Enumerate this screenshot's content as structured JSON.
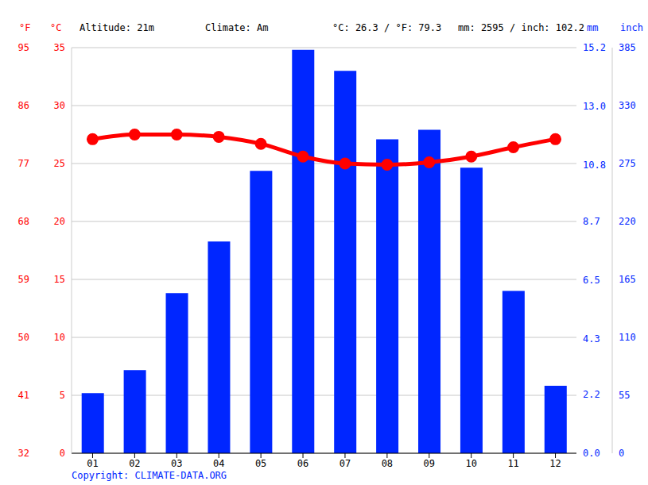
{
  "chart_data": {
    "type": "bar",
    "header": [
      "Altitude: 21m",
      "Climate: Am",
      "°C: 26.3 / °F: 79.3",
      "mm: 2595 / inch: 102.2"
    ],
    "footer": "Copyright: CLIMATE-DATA.ORG",
    "categories": [
      "01",
      "02",
      "03",
      "04",
      "05",
      "06",
      "07",
      "08",
      "09",
      "10",
      "11",
      "12"
    ],
    "series": [
      {
        "name": "mm",
        "type": "bar",
        "axis": "y2",
        "color": "#0026ff",
        "values": [
          57,
          79,
          152,
          201,
          268,
          383,
          363,
          298,
          307,
          271,
          154,
          64
        ]
      },
      {
        "name": "°C",
        "type": "line",
        "color": "#ff0000",
        "marker": "circle",
        "values": [
          27.1,
          27.5,
          27.5,
          27.3,
          26.7,
          25.6,
          25.0,
          24.9,
          25.1,
          25.6,
          26.4,
          27.1
        ]
      }
    ],
    "ylim": [
      0,
      35
    ],
    "yticks": [
      0,
      5,
      10,
      15,
      20,
      25,
      30,
      35
    ],
    "y2lim": [
      0,
      385
    ],
    "y2ticks": [
      0,
      55,
      110,
      165,
      220,
      275,
      330,
      385
    ],
    "y3label": "°F",
    "y3lim": [
      32,
      95
    ],
    "y3ticks": [
      32,
      41,
      50,
      59,
      68,
      77,
      86,
      95
    ],
    "y4label": "inch",
    "y4lim": [
      0,
      15.2
    ],
    "y4ticks": [
      {
        "value": 0,
        "label": "0.0"
      },
      2.2,
      4.3,
      6.5,
      8.7,
      10.8,
      {
        "value": 13,
        "label": "13.0"
      },
      15.2
    ],
    "grid": true
  }
}
